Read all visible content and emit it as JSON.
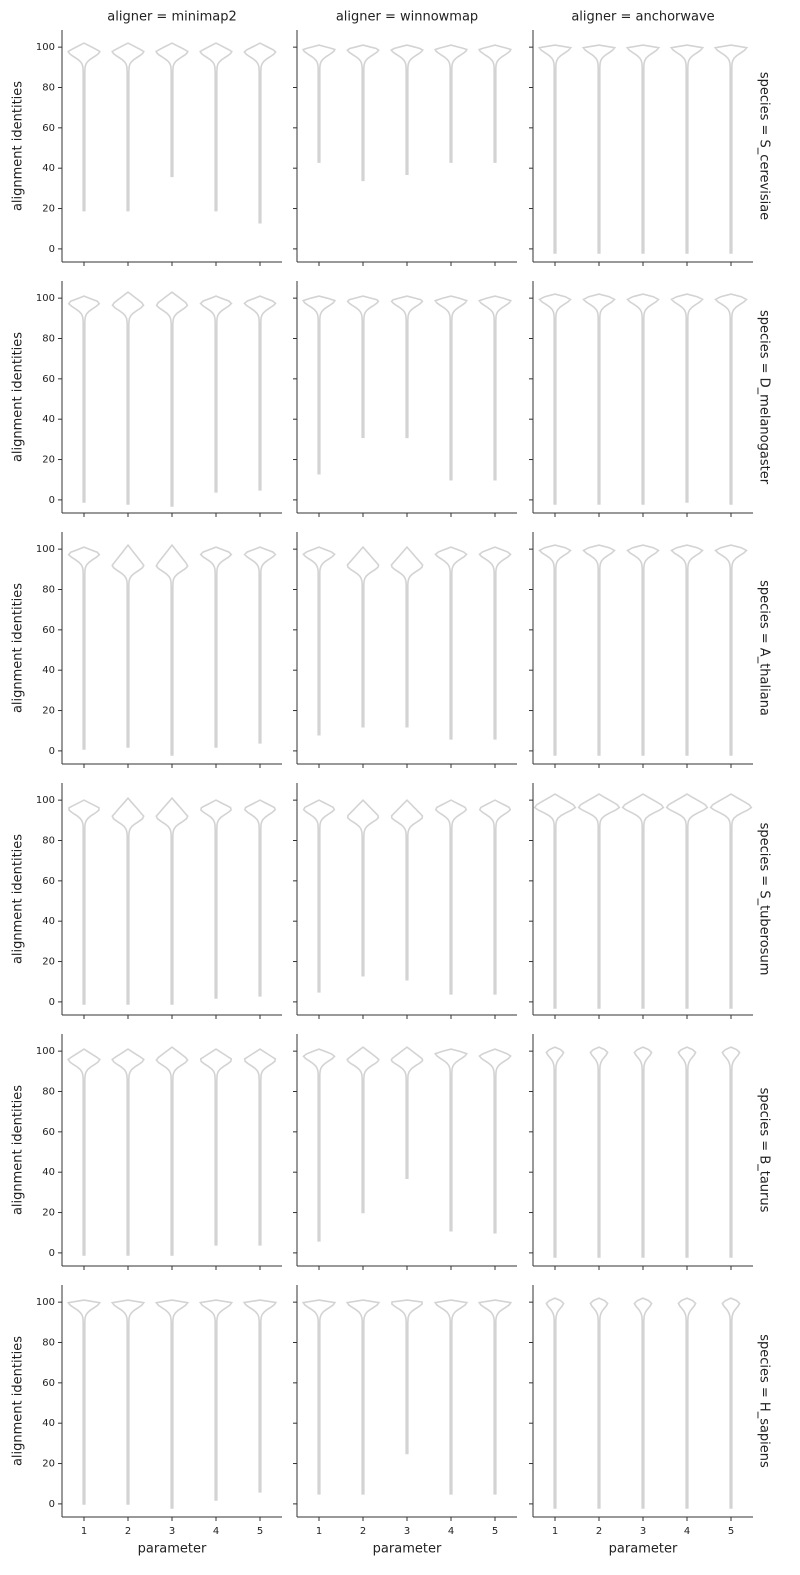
{
  "chart_data": {
    "type": "violin",
    "columns": [
      "aligner = minimap2",
      "aligner = winnowmap",
      "aligner = anchorwave"
    ],
    "rows": [
      "species = S_cerevisiae",
      "species = D_melanogaster",
      "species = A_thaliana",
      "species = S_tuberosum",
      "species = B_taurus",
      "species = H_sapiens"
    ],
    "categories": [
      1,
      2,
      3,
      4,
      5
    ],
    "xlabel": "parameter",
    "ylabel": "alignment identities",
    "ylim": [
      -6.5,
      108.5
    ],
    "yticks": [
      0,
      20,
      40,
      60,
      80,
      100
    ],
    "color": "#d3d3d3",
    "panels": [
      [
        {
          "min": [
            19,
            19,
            36,
            19,
            13
          ],
          "peak": [
            98,
            98,
            98,
            98,
            98
          ],
          "max": [
            102,
            102,
            102,
            102,
            102
          ]
        },
        {
          "min": [
            43,
            34,
            37,
            43,
            43
          ],
          "peak": [
            99,
            99,
            99,
            99,
            99
          ],
          "max": [
            101,
            101,
            101,
            101,
            101
          ]
        },
        {
          "min": [
            -2,
            -2,
            -2,
            -2,
            -2
          ],
          "peak": [
            100,
            100,
            100,
            100,
            100
          ],
          "max": [
            101,
            101,
            101,
            101,
            101
          ]
        }
      ],
      [
        {
          "min": [
            -1,
            -2,
            -3,
            4,
            5
          ],
          "peak": [
            98,
            97,
            97,
            98,
            98
          ],
          "max": [
            101,
            103,
            103,
            101,
            101
          ]
        },
        {
          "min": [
            13,
            31,
            31,
            10,
            10
          ],
          "peak": [
            99,
            99,
            99,
            99,
            99
          ],
          "max": [
            101,
            101,
            101,
            101,
            101
          ]
        },
        {
          "min": [
            -2,
            -2,
            -2,
            -1,
            -2
          ],
          "peak": [
            100,
            100,
            100,
            100,
            100
          ],
          "max": [
            102,
            102,
            102,
            102,
            102
          ]
        }
      ],
      [
        {
          "min": [
            1,
            2,
            -2,
            2,
            4
          ],
          "peak": [
            98,
            92,
            92,
            98,
            98
          ],
          "max": [
            101,
            102,
            102,
            101,
            101
          ]
        },
        {
          "min": [
            8,
            12,
            12,
            6,
            6
          ],
          "peak": [
            98,
            92,
            92,
            98,
            98
          ],
          "max": [
            101,
            101,
            101,
            101,
            101
          ]
        },
        {
          "min": [
            -2,
            -2,
            -2,
            -2,
            -2
          ],
          "peak": [
            100,
            100,
            100,
            100,
            100
          ],
          "max": [
            102,
            102,
            102,
            102,
            102
          ]
        }
      ],
      [
        {
          "min": [
            -1,
            -1,
            -1,
            2,
            3
          ],
          "peak": [
            96,
            92,
            92,
            96,
            96
          ],
          "max": [
            100,
            101,
            101,
            100,
            100
          ]
        },
        {
          "min": [
            5,
            13,
            11,
            4,
            4
          ],
          "peak": [
            96,
            92,
            92,
            96,
            96
          ],
          "max": [
            100,
            100,
            100,
            100,
            100
          ]
        },
        {
          "min": [
            -3,
            -3,
            -3,
            -3,
            -3
          ],
          "peak": [
            97,
            97,
            97,
            97,
            97
          ],
          "max": [
            103,
            103,
            103,
            103,
            103
          ]
        }
      ],
      [
        {
          "min": [
            -1,
            -1,
            -1,
            4,
            4
          ],
          "peak": [
            96,
            96,
            96,
            96,
            96
          ],
          "max": [
            101,
            101,
            102,
            101,
            101
          ]
        },
        {
          "min": [
            6,
            20,
            37,
            11,
            10
          ],
          "peak": [
            98,
            96,
            96,
            99,
            98
          ],
          "max": [
            101,
            102,
            102,
            101,
            101
          ]
        },
        {
          "min": [
            -2,
            -2,
            -2,
            -2,
            -2
          ],
          "peak": [
            100,
            100,
            100,
            100,
            100
          ],
          "max": [
            102,
            102,
            102,
            102,
            102
          ]
        }
      ],
      [
        {
          "min": [
            0,
            0,
            -2,
            2,
            6
          ],
          "peak": [
            100,
            100,
            100,
            100,
            100
          ],
          "max": [
            101,
            101,
            101,
            101,
            101
          ]
        },
        {
          "min": [
            5,
            5,
            25,
            5,
            5
          ],
          "peak": [
            100,
            100,
            100,
            100,
            100
          ],
          "max": [
            101,
            101,
            101,
            101,
            101
          ]
        },
        {
          "min": [
            -2,
            -2,
            -2,
            -2,
            -2
          ],
          "peak": [
            100,
            100,
            100,
            100,
            100
          ],
          "max": [
            102,
            102,
            102,
            102,
            102
          ]
        }
      ]
    ]
  }
}
